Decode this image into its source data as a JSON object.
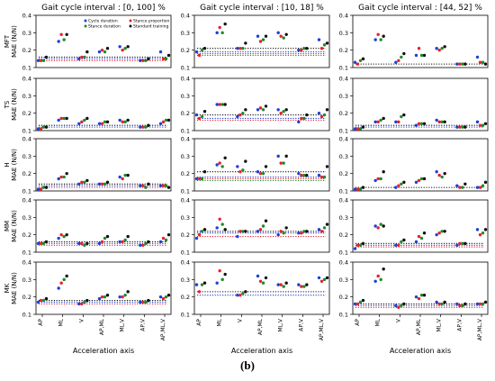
{
  "caption": "(b)",
  "colors": {
    "cycle_duration": "#1f3fd6",
    "stance_proportion": "#e8202a",
    "stance_duration": "#1f8a2a",
    "standard_training": "#111111"
  },
  "chart_data": {
    "type": "scatter",
    "column_titles": [
      "Gait cycle interval : [0, 100] %",
      "Gait cycle interval : [10, 18] %",
      "Gait cycle interval : [44, 52] %"
    ],
    "row_labels": [
      "MFT",
      "TS",
      "H",
      "MM",
      "MK"
    ],
    "ylabel": "MAE (N/N)",
    "xlabel": "Acceleration axis",
    "categories": [
      "AP",
      "ML",
      "V",
      "AP,ML",
      "ML,V",
      "AP,V",
      "AP,ML,V"
    ],
    "yticks": [
      "0.1",
      "0.2",
      "0.3",
      "0.4"
    ],
    "ylim": [
      0.1,
      0.4
    ],
    "legend": [
      "Cycle duration",
      "Stance proportion",
      "Stance duration",
      "Standard training"
    ],
    "legend_position": "top-left of first panel",
    "series_order": [
      "Cycle duration",
      "Stance proportion",
      "Stance duration",
      "Standard training"
    ],
    "panels": [
      {
        "row": "MFT",
        "col": 0,
        "values": [
          [
            0.14,
            0.14,
            0.14,
            0.16
          ],
          [
            0.25,
            0.29,
            0.26,
            0.29
          ],
          [
            0.15,
            0.16,
            0.16,
            0.19
          ],
          [
            0.19,
            0.2,
            0.19,
            0.21
          ],
          [
            0.22,
            0.2,
            0.21,
            0.22
          ],
          [
            0.14,
            0.14,
            0.14,
            0.15
          ],
          [
            0.19,
            0.15,
            0.15,
            0.17
          ]
        ],
        "ref_lines": [
          0.16,
          0.15,
          0.14
        ]
      },
      {
        "row": "MFT",
        "col": 1,
        "values": [
          [
            0.19,
            0.17,
            0.2,
            0.21
          ],
          [
            0.3,
            0.33,
            0.3,
            0.35
          ],
          [
            0.21,
            0.21,
            0.21,
            0.24
          ],
          [
            0.28,
            0.25,
            0.26,
            0.28
          ],
          [
            0.3,
            0.28,
            0.27,
            0.29
          ],
          [
            0.2,
            0.2,
            0.21,
            0.21
          ],
          [
            0.26,
            0.21,
            0.23,
            0.24
          ]
        ],
        "ref_lines": [
          0.21,
          0.19,
          0.18,
          0.17
        ]
      },
      {
        "row": "MFT",
        "col": 2,
        "values": [
          [
            0.13,
            0.12,
            0.14,
            0.15
          ],
          [
            0.26,
            0.29,
            0.26,
            0.28
          ],
          [
            0.13,
            0.14,
            0.16,
            0.18
          ],
          [
            0.17,
            0.21,
            0.17,
            0.17
          ],
          [
            0.21,
            0.2,
            0.21,
            0.22
          ],
          [
            0.12,
            0.12,
            0.12,
            0.12
          ],
          [
            0.16,
            0.13,
            0.13,
            0.12
          ]
        ],
        "ref_lines": [
          0.12
        ]
      },
      {
        "row": "TS",
        "col": 0,
        "values": [
          [
            0.11,
            0.11,
            0.12,
            0.12
          ],
          [
            0.16,
            0.17,
            0.17,
            0.17
          ],
          [
            0.14,
            0.15,
            0.16,
            0.17
          ],
          [
            0.14,
            0.14,
            0.15,
            0.15
          ],
          [
            0.16,
            0.15,
            0.15,
            0.16
          ],
          [
            0.12,
            0.12,
            0.12,
            0.13
          ],
          [
            0.14,
            0.15,
            0.16,
            0.16
          ]
        ],
        "ref_lines": [
          0.13,
          0.12
        ]
      },
      {
        "row": "TS",
        "col": 1,
        "values": [
          [
            0.19,
            0.17,
            0.18,
            0.21
          ],
          [
            0.25,
            0.25,
            0.25,
            0.25
          ],
          [
            0.18,
            0.19,
            0.2,
            0.22
          ],
          [
            0.22,
            0.23,
            0.22,
            0.24
          ],
          [
            0.22,
            0.2,
            0.21,
            0.22
          ],
          [
            0.15,
            0.17,
            0.17,
            0.19
          ],
          [
            0.2,
            0.18,
            0.19,
            0.22
          ]
        ],
        "ref_lines": [
          0.19,
          0.17,
          0.16
        ]
      },
      {
        "row": "TS",
        "col": 2,
        "values": [
          [
            0.11,
            0.11,
            0.11,
            0.12
          ],
          [
            0.15,
            0.15,
            0.16,
            0.17
          ],
          [
            0.15,
            0.15,
            0.18,
            0.19
          ],
          [
            0.13,
            0.14,
            0.14,
            0.14
          ],
          [
            0.16,
            0.15,
            0.15,
            0.15
          ],
          [
            0.12,
            0.12,
            0.12,
            0.12
          ],
          [
            0.15,
            0.13,
            0.13,
            0.14
          ]
        ],
        "ref_lines": [
          0.13,
          0.12
        ]
      },
      {
        "row": "H",
        "col": 0,
        "values": [
          [
            0.11,
            0.11,
            0.12,
            0.12
          ],
          [
            0.17,
            0.18,
            0.18,
            0.2
          ],
          [
            0.14,
            0.15,
            0.15,
            0.16
          ],
          [
            0.14,
            0.14,
            0.14,
            0.15
          ],
          [
            0.18,
            0.17,
            0.19,
            0.19
          ],
          [
            0.13,
            0.13,
            0.12,
            0.14
          ],
          [
            0.13,
            0.13,
            0.13,
            0.12
          ]
        ],
        "ref_lines": [
          0.14,
          0.13,
          0.12
        ]
      },
      {
        "row": "H",
        "col": 1,
        "values": [
          [
            0.17,
            0.17,
            0.17,
            0.21
          ],
          [
            0.25,
            0.26,
            0.24,
            0.29
          ],
          [
            0.24,
            0.21,
            0.22,
            0.27
          ],
          [
            0.21,
            0.2,
            0.2,
            0.24
          ],
          [
            0.3,
            0.26,
            0.26,
            0.3
          ],
          [
            0.2,
            0.19,
            0.19,
            0.19
          ],
          [
            0.19,
            0.18,
            0.18,
            0.24
          ]
        ],
        "ref_lines": [
          0.21,
          0.18,
          0.17,
          0.16
        ]
      },
      {
        "row": "H",
        "col": 2,
        "values": [
          [
            0.11,
            0.11,
            0.11,
            0.12
          ],
          [
            0.16,
            0.17,
            0.17,
            0.21
          ],
          [
            0.12,
            0.13,
            0.14,
            0.15
          ],
          [
            0.15,
            0.16,
            0.17,
            0.17
          ],
          [
            0.21,
            0.19,
            0.18,
            0.2
          ],
          [
            0.13,
            0.12,
            0.12,
            0.14
          ],
          [
            0.12,
            0.12,
            0.13,
            0.15
          ]
        ],
        "ref_lines": [
          0.12
        ]
      },
      {
        "row": "MM",
        "col": 0,
        "values": [
          [
            0.15,
            0.15,
            0.15,
            0.16
          ],
          [
            0.18,
            0.2,
            0.19,
            0.2
          ],
          [
            0.15,
            0.15,
            0.14,
            0.15
          ],
          [
            0.15,
            0.16,
            0.18,
            0.19
          ],
          [
            0.16,
            0.16,
            0.17,
            0.19
          ],
          [
            0.14,
            0.14,
            0.15,
            0.16
          ],
          [
            0.16,
            0.18,
            0.17,
            0.2
          ]
        ],
        "ref_lines": [
          0.16,
          0.15,
          0.14
        ]
      },
      {
        "row": "MM",
        "col": 1,
        "values": [
          [
            0.18,
            0.2,
            0.22,
            0.23
          ],
          [
            0.24,
            0.29,
            0.26,
            0.23
          ],
          [
            0.19,
            0.22,
            0.22,
            0.22
          ],
          [
            0.22,
            0.23,
            0.25,
            0.28
          ],
          [
            0.2,
            0.22,
            0.21,
            0.24
          ],
          [
            0.21,
            0.21,
            0.22,
            0.22
          ],
          [
            0.23,
            0.22,
            0.24,
            0.26
          ]
        ],
        "ref_lines": [
          0.22,
          0.21,
          0.19
        ]
      },
      {
        "row": "MM",
        "col": 2,
        "values": [
          [
            0.12,
            0.14,
            0.14,
            0.15
          ],
          [
            0.25,
            0.24,
            0.26,
            0.25
          ],
          [
            0.14,
            0.14,
            0.16,
            0.17
          ],
          [
            0.16,
            0.19,
            0.18,
            0.21
          ],
          [
            0.2,
            0.21,
            0.22,
            0.22
          ],
          [
            0.14,
            0.15,
            0.15,
            0.15
          ],
          [
            0.23,
            0.2,
            0.21,
            0.23
          ]
        ],
        "ref_lines": [
          0.15,
          0.14,
          0.13
        ]
      },
      {
        "row": "MK",
        "col": 0,
        "values": [
          [
            0.17,
            0.18,
            0.18,
            0.19
          ],
          [
            0.25,
            0.28,
            0.3,
            0.32
          ],
          [
            0.16,
            0.16,
            0.17,
            0.18
          ],
          [
            0.19,
            0.2,
            0.2,
            0.21
          ],
          [
            0.2,
            0.2,
            0.21,
            0.23
          ],
          [
            0.17,
            0.17,
            0.17,
            0.18
          ],
          [
            0.2,
            0.19,
            0.2,
            0.21
          ]
        ],
        "ref_lines": [
          0.18,
          0.17,
          0.16
        ]
      },
      {
        "row": "MK",
        "col": 1,
        "values": [
          [
            0.27,
            0.23,
            0.27,
            0.28
          ],
          [
            0.28,
            0.35,
            0.3,
            0.33
          ],
          [
            0.21,
            0.21,
            0.22,
            0.23
          ],
          [
            0.32,
            0.29,
            0.28,
            0.31
          ],
          [
            0.27,
            0.27,
            0.26,
            0.28
          ],
          [
            0.27,
            0.26,
            0.26,
            0.27
          ],
          [
            0.31,
            0.29,
            0.3,
            0.31
          ]
        ],
        "ref_lines": [
          0.23,
          0.21
        ]
      },
      {
        "row": "MK",
        "col": 2,
        "values": [
          [
            0.16,
            0.16,
            0.17,
            0.18
          ],
          [
            0.29,
            0.32,
            0.3,
            0.36
          ],
          [
            0.15,
            0.14,
            0.15,
            0.16
          ],
          [
            0.2,
            0.19,
            0.21,
            0.21
          ],
          [
            0.17,
            0.16,
            0.16,
            0.17
          ],
          [
            0.16,
            0.15,
            0.15,
            0.16
          ],
          [
            0.16,
            0.16,
            0.16,
            0.17
          ]
        ],
        "ref_lines": [
          0.16,
          0.15,
          0.14
        ]
      }
    ]
  }
}
